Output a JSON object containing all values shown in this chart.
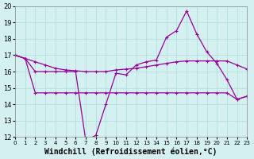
{
  "xlabel": "Windchill (Refroidissement éolien,°C)",
  "background_color": "#d4f0f0",
  "grid_color": "#aadddd",
  "line_color": "#990099",
  "xlim": [
    0,
    23
  ],
  "ylim": [
    12,
    20
  ],
  "yticks": [
    12,
    13,
    14,
    15,
    16,
    17,
    18,
    19,
    20
  ],
  "xticks": [
    0,
    1,
    2,
    3,
    4,
    5,
    6,
    7,
    8,
    9,
    10,
    11,
    12,
    13,
    14,
    15,
    16,
    17,
    18,
    19,
    20,
    21,
    22,
    23
  ],
  "series1_x": [
    0,
    1,
    2,
    3,
    4,
    5,
    6,
    7,
    8,
    9,
    10,
    11,
    12,
    13,
    14,
    15,
    16,
    17,
    18,
    19,
    20,
    21,
    22,
    23
  ],
  "series1_y": [
    17.0,
    16.8,
    16.6,
    16.4,
    16.2,
    16.1,
    16.05,
    16.0,
    16.0,
    16.0,
    16.1,
    16.15,
    16.2,
    16.3,
    16.4,
    16.5,
    16.6,
    16.65,
    16.65,
    16.65,
    16.65,
    16.65,
    16.4,
    16.15
  ],
  "series2_x": [
    0,
    1,
    2,
    3,
    4,
    5,
    6,
    7,
    8,
    9,
    10,
    11,
    12,
    13,
    14,
    15,
    16,
    17,
    18,
    19,
    20,
    21,
    22,
    23
  ],
  "series2_y": [
    17.0,
    16.8,
    16.0,
    16.0,
    16.0,
    16.0,
    16.0,
    11.8,
    12.1,
    14.0,
    15.9,
    15.8,
    16.4,
    16.6,
    16.7,
    18.1,
    18.5,
    19.7,
    18.3,
    17.2,
    16.5,
    15.5,
    14.3,
    14.5
  ],
  "series3_x": [
    0,
    1,
    2,
    3,
    4,
    5,
    6,
    7,
    8,
    9,
    10,
    11,
    12,
    13,
    14,
    15,
    16,
    17,
    18,
    19,
    20,
    21,
    22,
    23
  ],
  "series3_y": [
    17.0,
    16.8,
    14.7,
    14.7,
    14.7,
    14.7,
    14.7,
    14.7,
    14.7,
    14.7,
    14.7,
    14.7,
    14.7,
    14.7,
    14.7,
    14.7,
    14.7,
    14.7,
    14.7,
    14.7,
    14.7,
    14.7,
    14.3,
    14.5
  ],
  "fontsize_label": 7,
  "fontsize_tick": 6
}
